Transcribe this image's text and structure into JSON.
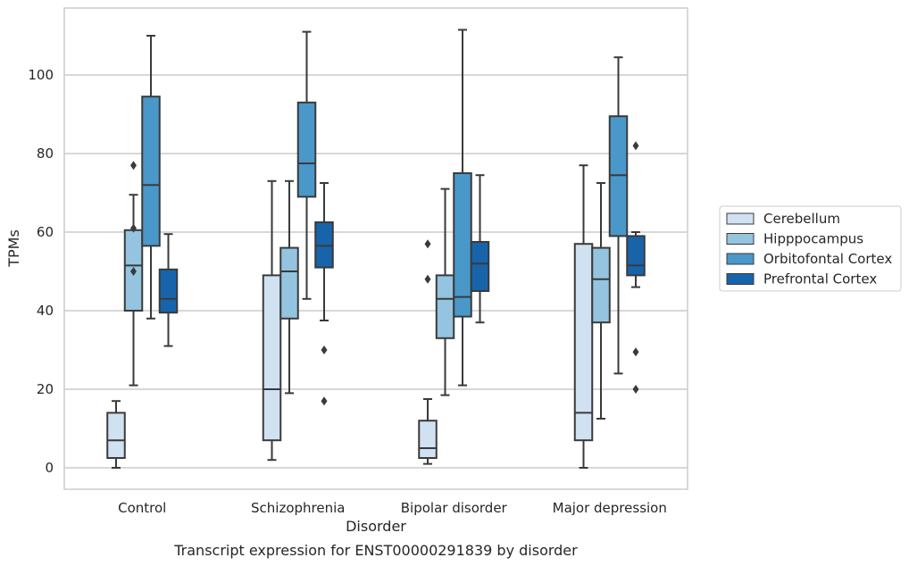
{
  "caption": "Transcript expression for ENST00000291839 by disorder",
  "chart_data": {
    "type": "box",
    "xlabel": "Disorder",
    "ylabel": "TPMs",
    "ylim": [
      -5,
      117
    ],
    "yticks": [
      0,
      20,
      40,
      60,
      80,
      100
    ],
    "grid": "horizontal",
    "legend_position": "right",
    "categories": [
      "Control",
      "Schizophrenia",
      "Bipolar disorder",
      "Major depression"
    ],
    "series": [
      {
        "name": "Cerebellum",
        "color": "#d0e1f2",
        "boxes": [
          {
            "whisker_low": 0,
            "q1": 2.5,
            "median": 7,
            "q3": 14,
            "whisker_high": 17,
            "outliers": []
          },
          {
            "whisker_low": 2,
            "q1": 7,
            "median": 20,
            "q3": 49,
            "whisker_high": 73,
            "outliers": []
          },
          {
            "whisker_low": 1,
            "q1": 2.5,
            "median": 5,
            "q3": 12,
            "whisker_high": 17.5,
            "outliers": [
              48,
              57
            ]
          },
          {
            "whisker_low": 0,
            "q1": 7,
            "median": 14,
            "q3": 57,
            "whisker_high": 77,
            "outliers": []
          }
        ]
      },
      {
        "name": "Hipppocampus",
        "color": "#94c4df",
        "boxes": [
          {
            "whisker_low": 21,
            "q1": 40,
            "median": 51.5,
            "q3": 60.5,
            "whisker_high": 69.5,
            "outliers": [
              50,
              61,
              77
            ]
          },
          {
            "whisker_low": 19,
            "q1": 38,
            "median": 50,
            "q3": 56,
            "whisker_high": 73,
            "outliers": []
          },
          {
            "whisker_low": 18.5,
            "q1": 33,
            "median": 43,
            "q3": 49,
            "whisker_high": 71,
            "outliers": []
          },
          {
            "whisker_low": 12.5,
            "q1": 37,
            "median": 48,
            "q3": 56,
            "whisker_high": 72.5,
            "outliers": []
          }
        ]
      },
      {
        "name": "Orbitofontal Cortex",
        "color": "#4a98c9",
        "boxes": [
          {
            "whisker_low": 38,
            "q1": 56.5,
            "median": 72,
            "q3": 94.5,
            "whisker_high": 110,
            "outliers": []
          },
          {
            "whisker_low": 43,
            "q1": 69,
            "median": 77.5,
            "q3": 93,
            "whisker_high": 111,
            "outliers": []
          },
          {
            "whisker_low": 21,
            "q1": 38.5,
            "median": 43.5,
            "q3": 75,
            "whisker_high": 111.5,
            "outliers": []
          },
          {
            "whisker_low": 24,
            "q1": 59,
            "median": 74.5,
            "q3": 89.5,
            "whisker_high": 104.5,
            "outliers": []
          }
        ]
      },
      {
        "name": "Prefrontal Cortex",
        "color": "#1764ab",
        "boxes": [
          {
            "whisker_low": 31,
            "q1": 39.5,
            "median": 43,
            "q3": 50.5,
            "whisker_high": 59.5,
            "outliers": []
          },
          {
            "whisker_low": 37.5,
            "q1": 51,
            "median": 56.5,
            "q3": 62.5,
            "whisker_high": 72.5,
            "outliers": [
              17,
              30
            ]
          },
          {
            "whisker_low": 37,
            "q1": 45,
            "median": 52,
            "q3": 57.5,
            "whisker_high": 74.5,
            "outliers": []
          },
          {
            "whisker_low": 46,
            "q1": 49,
            "median": 51.5,
            "q3": 59,
            "whisker_high": 60,
            "outliers": [
              20,
              29.5,
              82
            ]
          }
        ]
      }
    ]
  }
}
